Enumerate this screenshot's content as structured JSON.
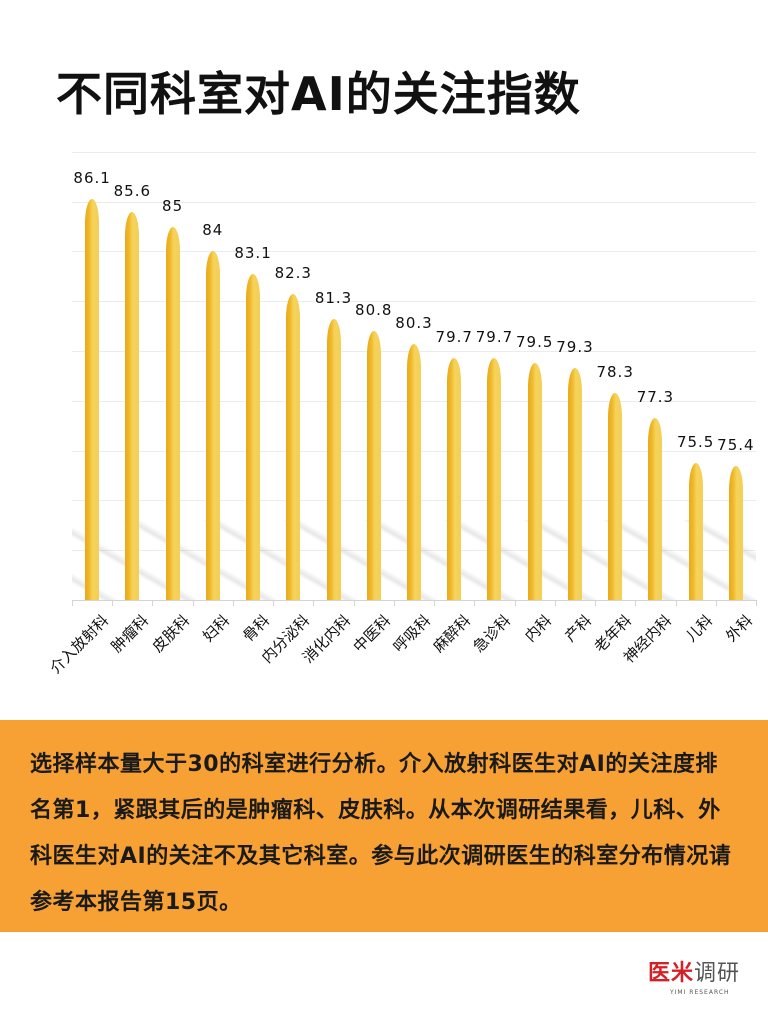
{
  "title": "不同科室对AI的关注指数",
  "chart_data": {
    "type": "bar",
    "title": "不同科室对AI的关注指数",
    "xlabel": "",
    "ylabel": "",
    "ylim": [
      70,
      88
    ],
    "grid": true,
    "legend": null,
    "categories": [
      "介入放射科",
      "肿瘤科",
      "皮肤科",
      "妇科",
      "骨科",
      "内分泌科",
      "消化内科",
      "中医科",
      "呼吸科",
      "麻醉科",
      "急诊科",
      "内科",
      "产科",
      "老年科",
      "神经内科",
      "儿科",
      "外科"
    ],
    "values": [
      86.1,
      85.6,
      85,
      84,
      83.1,
      82.3,
      81.3,
      80.8,
      80.3,
      79.7,
      79.7,
      79.5,
      79.3,
      78.3,
      77.3,
      75.5,
      75.4
    ],
    "value_labels": [
      "86.1",
      "85.6",
      "85",
      "84",
      "83.1",
      "82.3",
      "81.3",
      "80.8",
      "80.3",
      "79.7",
      "79.7",
      "79.5",
      "79.3",
      "78.3",
      "77.3",
      "75.5",
      "75.4"
    ],
    "bar_color": "#f3cf56",
    "bar_accent_color": "#e8a91a"
  },
  "note": {
    "text": "选择样本量大于30的科室进行分析。介入放射科医生对AI的关注度排名第1，紧跟其后的是肿瘤科、皮肤科。从本次调研结果看，儿科、外科医生对AI的关注不及其它科室。参与此次调研医生的科室分布情况请参考本报告第15页。",
    "background": "#f7a034"
  },
  "logo": {
    "red": "医米",
    "gray": "调研",
    "sub": "YIMI RESEARCH"
  }
}
